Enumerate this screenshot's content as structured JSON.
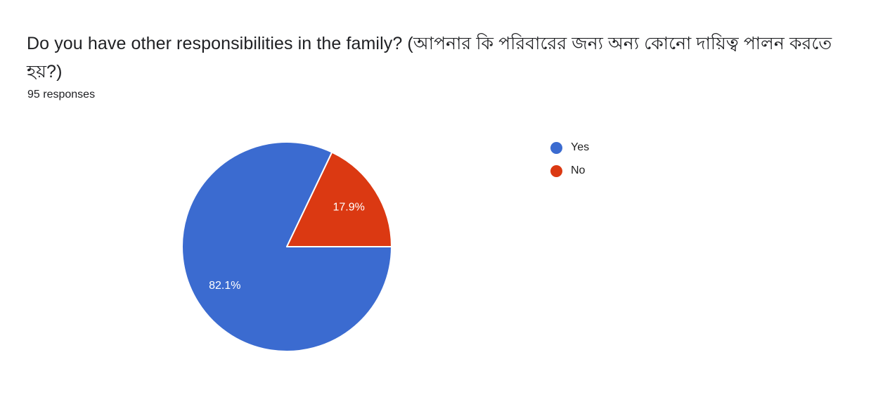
{
  "question": {
    "title": "Do you have other responsibilities in the family? (আপনার কি পরিবারের জন্য অন্য কোনো দায়িত্ব পালন করতে হয়?)",
    "responses_label": "95 responses"
  },
  "chart_data": {
    "type": "pie",
    "title": "Do you have other responsibilities in the family? (আপনার কি পরিবারের জন্য অন্য কোনো দায়িত্ব পালন করতে হয়?)",
    "subtitle": "95 responses",
    "categories": [
      "Yes",
      "No"
    ],
    "values": [
      82.1,
      17.9
    ],
    "slice_labels": [
      "82.1%",
      "17.9%"
    ],
    "colors": [
      "#3b6bd0",
      "#db3912"
    ],
    "slice_label_color": "#ffffff",
    "slice_border_color": "#ffffff",
    "legend_position": "right",
    "start_angle_deg": 90,
    "direction": "clockwise"
  }
}
